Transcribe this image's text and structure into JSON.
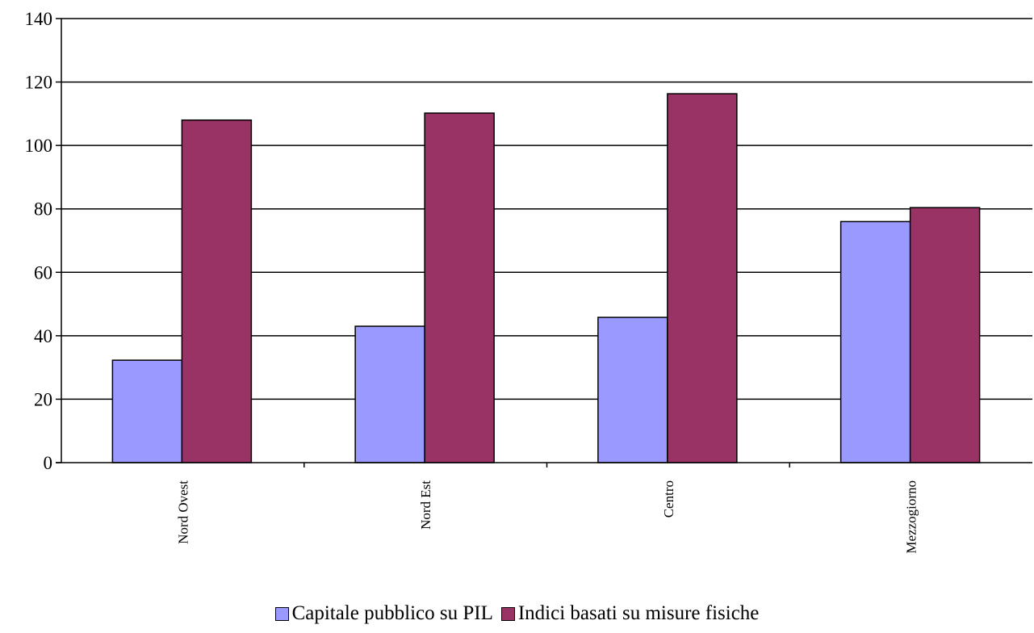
{
  "colors": {
    "series1": "#9999FF",
    "series2": "#993366",
    "axis": "#000000",
    "grid": "#000000"
  },
  "chart_data": {
    "type": "bar",
    "title": "",
    "xlabel": "",
    "ylabel": "",
    "categories": [
      "Nord Ovest",
      "Nord Est",
      "Centro",
      "Mezzogiorno"
    ],
    "series": [
      {
        "name": "Capitale pubblico su PIL",
        "values": [
          32.3,
          43.0,
          45.8,
          76.0
        ]
      },
      {
        "name": "Indici basati su misure fisiche",
        "values": [
          108.0,
          110.2,
          116.3,
          80.4
        ]
      }
    ],
    "ylim": [
      0,
      140
    ],
    "yticks": [
      0,
      20,
      40,
      60,
      80,
      100,
      120,
      140
    ],
    "grid": "horizontal",
    "legend": "bottom-center"
  }
}
